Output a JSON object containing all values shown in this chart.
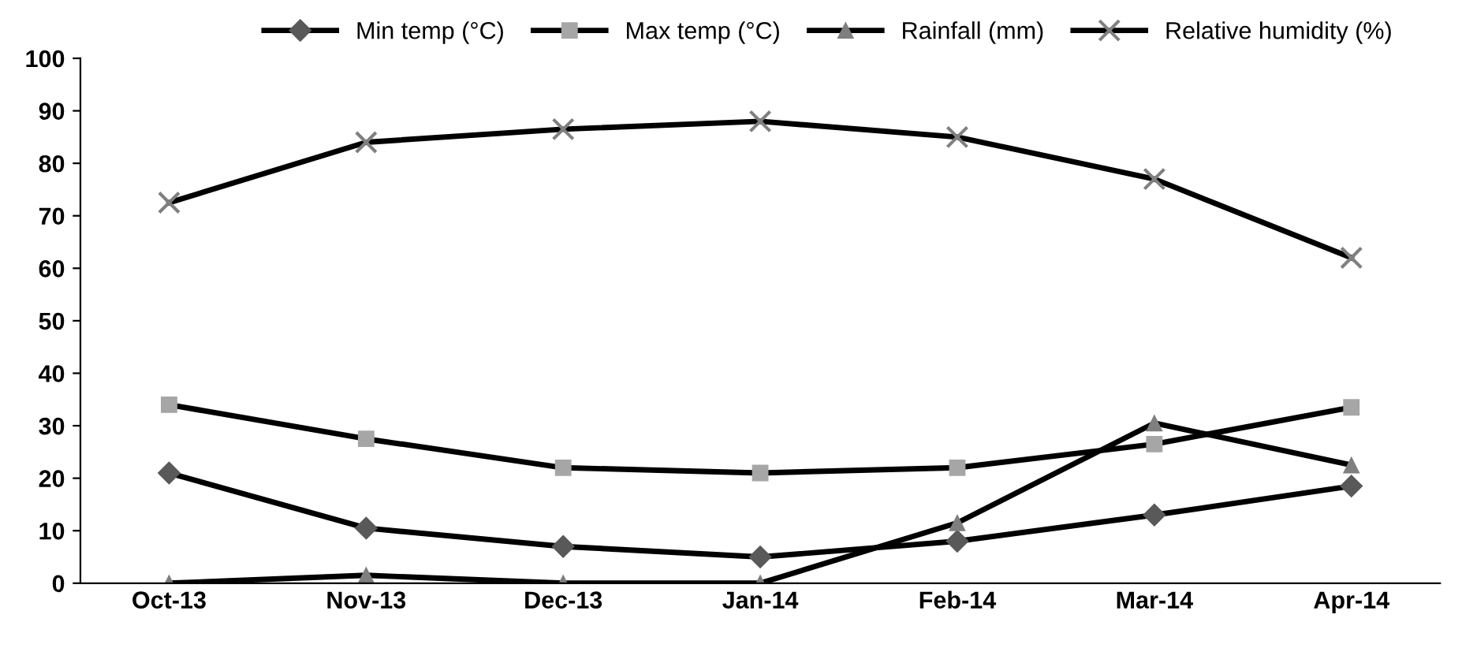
{
  "chart_data": {
    "type": "line",
    "categories": [
      "Oct-13",
      "Nov-13",
      "Dec-13",
      "Jan-14",
      "Feb-14",
      "Mar-14",
      "Apr-14"
    ],
    "series": [
      {
        "name": "Min temp (°C)",
        "color": "#595959",
        "marker": "diamond",
        "values": [
          21,
          10.5,
          7,
          5,
          8,
          13,
          18.5
        ]
      },
      {
        "name": "Max temp (°C)",
        "color": "#a6a6a6",
        "marker": "square",
        "values": [
          34,
          27.5,
          22,
          21,
          22,
          26.5,
          33.5
        ]
      },
      {
        "name": "Rainfall (mm)",
        "color": "#7f7f7f",
        "marker": "triangle",
        "values": [
          0,
          1.5,
          0,
          0,
          11.5,
          30.5,
          22.5
        ]
      },
      {
        "name": "Relative humidity (%)",
        "color": "#808080",
        "marker": "cross",
        "values": [
          72.5,
          84,
          86.5,
          88,
          85,
          77,
          62
        ]
      }
    ],
    "ylim": [
      0,
      100
    ],
    "yticks": [
      0,
      10,
      20,
      30,
      40,
      50,
      60,
      70,
      80,
      90,
      100
    ],
    "grid": false,
    "legend": "top",
    "line_style": "solid"
  }
}
